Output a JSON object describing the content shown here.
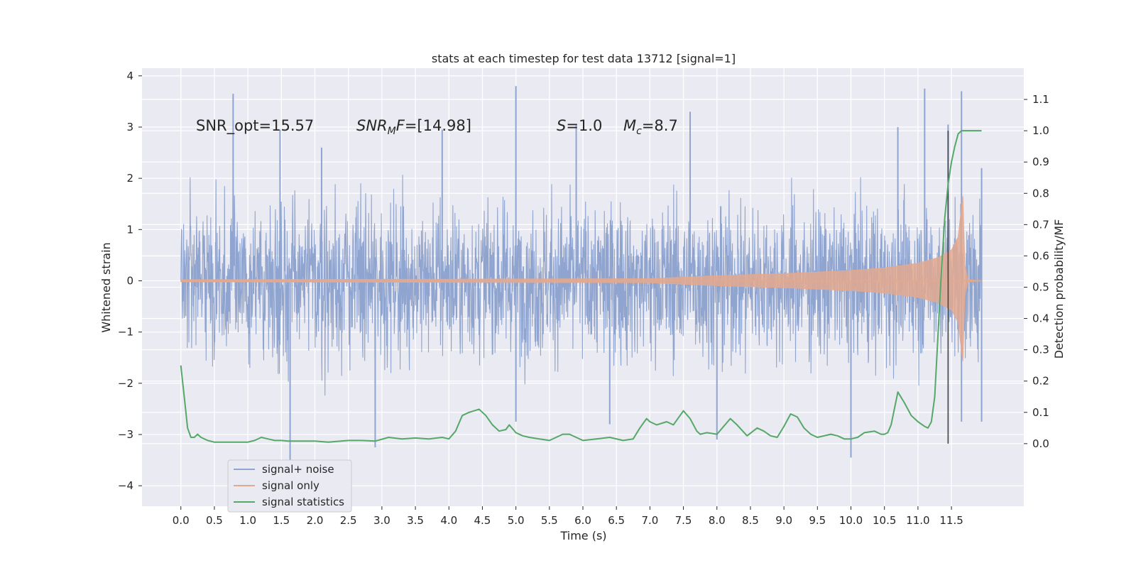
{
  "chart_data": {
    "type": "line",
    "title": "stats at each timestep for test data 13712 [signal=1]",
    "xlabel": "Time (s)",
    "ylabel": "Whitened strain",
    "y2label": "Detection probability/MF",
    "xlim": [
      -0.58,
      12.58
    ],
    "ylim": [
      -4.4,
      4.15
    ],
    "y2lim": [
      -0.2,
      1.2
    ],
    "x_ticks": [
      "0.0",
      "0.5",
      "1.0",
      "1.5",
      "2.0",
      "2.5",
      "3.0",
      "3.5",
      "4.0",
      "4.5",
      "5.0",
      "5.5",
      "6.0",
      "6.5",
      "7.0",
      "7.5",
      "8.0",
      "8.5",
      "9.0",
      "9.5",
      "10.0",
      "10.5",
      "11.0",
      "11.5"
    ],
    "y_ticks": [
      "4",
      "3",
      "2",
      "1",
      "0",
      "−1",
      "−2",
      "−3",
      "−4"
    ],
    "y2_ticks": [
      "1.1",
      "1.0",
      "0.9",
      "0.8",
      "0.7",
      "0.6",
      "0.5",
      "0.4",
      "0.3",
      "0.2",
      "0.1",
      "0.0"
    ],
    "grid": true,
    "legend_position": "lower-left",
    "annotations": {
      "snr_opt": "SNR_opt=15.57",
      "snr_mf_label": "SNR",
      "snr_mf_sub": "M",
      "snr_mf_rest": "F=[14.98]",
      "s_label": "S",
      "s_value": "=1.0",
      "mc_label": "M",
      "mc_sub": "c",
      "mc_value": "=8.7"
    },
    "detection_time": 11.45,
    "series": [
      {
        "name": "signal+ noise",
        "color": "#8fa4cf",
        "description": "whitened noisy strain, approx. spans -2 to +2 with spikes to about +-3.8",
        "x_range": [
          0.0,
          11.95
        ],
        "spikes": [
          {
            "x": 0.78,
            "y": 3.65
          },
          {
            "x": 1.48,
            "y": 2.95
          },
          {
            "x": 1.63,
            "y": -3.6
          },
          {
            "x": 2.1,
            "y": 2.6
          },
          {
            "x": 2.9,
            "y": -3.25
          },
          {
            "x": 3.9,
            "y": 2.95
          },
          {
            "x": 5.0,
            "y": 3.8
          },
          {
            "x": 5.0,
            "y": -2.75
          },
          {
            "x": 5.9,
            "y": 3.05
          },
          {
            "x": 6.4,
            "y": -2.8
          },
          {
            "x": 7.6,
            "y": 3.3
          },
          {
            "x": 8.0,
            "y": -3.1
          },
          {
            "x": 10.0,
            "y": -3.45
          },
          {
            "x": 10.7,
            "y": 3.0
          },
          {
            "x": 11.1,
            "y": 3.75
          },
          {
            "x": 11.45,
            "y": 3.05
          },
          {
            "x": 11.65,
            "y": 3.7
          },
          {
            "x": 11.65,
            "y": -2.75
          },
          {
            "x": 11.95,
            "y": -2.75
          },
          {
            "x": 11.95,
            "y": 2.2
          }
        ]
      },
      {
        "name": "signal only",
        "color": "#e3a98f",
        "description": "chirp signal with amplitude growing toward merger near 11.7 s",
        "envelope": [
          {
            "x": 0.0,
            "a": 0.02
          },
          {
            "x": 7.0,
            "a": 0.04
          },
          {
            "x": 8.0,
            "a": 0.1
          },
          {
            "x": 9.0,
            "a": 0.14
          },
          {
            "x": 10.0,
            "a": 0.2
          },
          {
            "x": 10.5,
            "a": 0.25
          },
          {
            "x": 11.0,
            "a": 0.34
          },
          {
            "x": 11.3,
            "a": 0.45
          },
          {
            "x": 11.5,
            "a": 0.6
          },
          {
            "x": 11.6,
            "a": 0.85
          },
          {
            "x": 11.67,
            "a": 1.65
          },
          {
            "x": 11.7,
            "a": 0.3
          },
          {
            "x": 11.75,
            "a": 0.02
          },
          {
            "x": 11.95,
            "a": 0.0
          }
        ]
      },
      {
        "name": "signal statistics",
        "color": "#55a868",
        "axis": "right",
        "x": [
          0.0,
          0.05,
          0.1,
          0.15,
          0.2,
          0.25,
          0.3,
          0.4,
          0.5,
          0.6,
          0.8,
          1.0,
          1.1,
          1.2,
          1.3,
          1.4,
          1.5,
          1.6,
          1.8,
          2.0,
          2.2,
          2.5,
          2.7,
          2.9,
          3.1,
          3.3,
          3.5,
          3.7,
          3.9,
          4.0,
          4.1,
          4.2,
          4.3,
          4.45,
          4.55,
          4.65,
          4.75,
          4.85,
          4.9,
          5.0,
          5.1,
          5.2,
          5.5,
          5.7,
          5.8,
          6.0,
          6.2,
          6.4,
          6.6,
          6.75,
          6.85,
          6.95,
          7.0,
          7.1,
          7.25,
          7.35,
          7.5,
          7.6,
          7.7,
          7.75,
          7.85,
          8.0,
          8.2,
          8.3,
          8.45,
          8.6,
          8.7,
          8.8,
          8.9,
          9.0,
          9.1,
          9.2,
          9.3,
          9.4,
          9.5,
          9.7,
          9.8,
          9.9,
          10.0,
          10.1,
          10.2,
          10.35,
          10.45,
          10.5,
          10.55,
          10.6,
          10.7,
          10.8,
          10.9,
          11.0,
          11.1,
          11.15,
          11.2,
          11.25,
          11.3,
          11.35,
          11.4,
          11.45,
          11.5,
          11.55,
          11.6,
          11.65,
          11.7,
          11.8,
          11.9,
          11.95
        ],
        "y": [
          0.25,
          0.15,
          0.05,
          0.02,
          0.02,
          0.03,
          0.02,
          0.01,
          0.005,
          0.005,
          0.005,
          0.005,
          0.01,
          0.02,
          0.015,
          0.01,
          0.01,
          0.008,
          0.008,
          0.008,
          0.005,
          0.01,
          0.01,
          0.008,
          0.02,
          0.015,
          0.018,
          0.015,
          0.02,
          0.015,
          0.04,
          0.09,
          0.1,
          0.11,
          0.09,
          0.06,
          0.04,
          0.045,
          0.06,
          0.035,
          0.025,
          0.02,
          0.01,
          0.03,
          0.03,
          0.01,
          0.015,
          0.02,
          0.01,
          0.015,
          0.05,
          0.08,
          0.07,
          0.06,
          0.07,
          0.06,
          0.105,
          0.08,
          0.04,
          0.03,
          0.035,
          0.03,
          0.08,
          0.06,
          0.025,
          0.05,
          0.04,
          0.025,
          0.02,
          0.055,
          0.095,
          0.085,
          0.05,
          0.03,
          0.02,
          0.03,
          0.025,
          0.015,
          0.015,
          0.02,
          0.035,
          0.04,
          0.03,
          0.03,
          0.035,
          0.06,
          0.165,
          0.13,
          0.09,
          0.07,
          0.055,
          0.05,
          0.07,
          0.15,
          0.35,
          0.55,
          0.72,
          0.83,
          0.9,
          0.95,
          0.99,
          1.0,
          1.0,
          1.0,
          1.0,
          1.0
        ]
      }
    ]
  }
}
